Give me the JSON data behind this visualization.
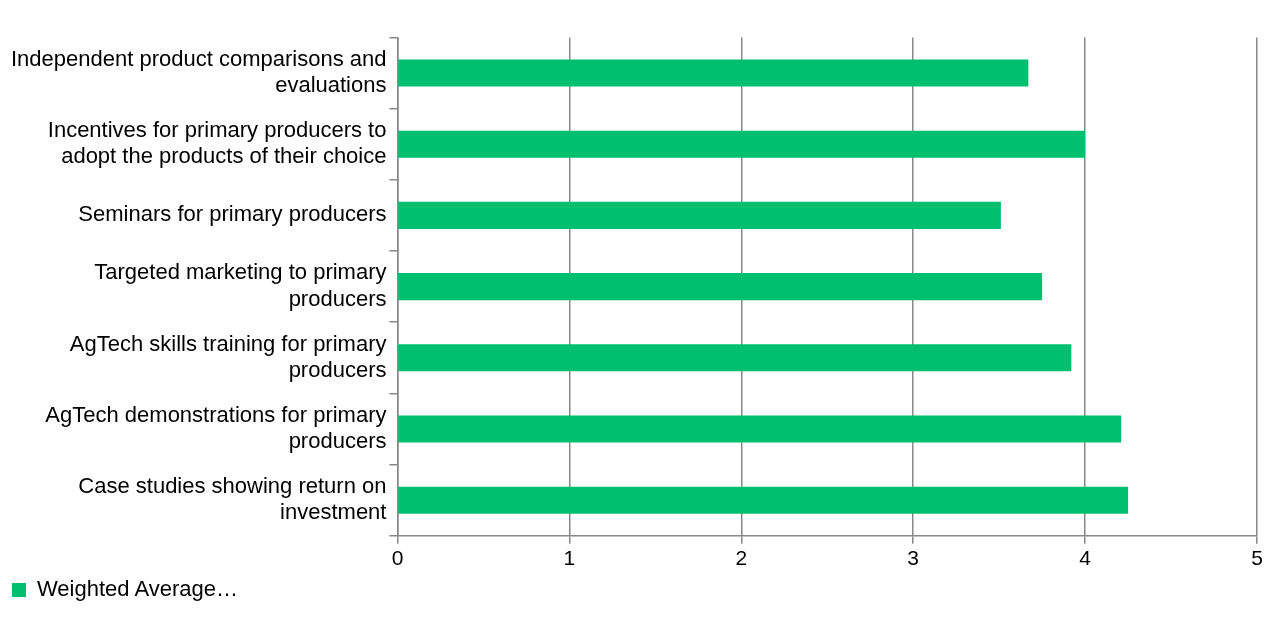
{
  "chart_data": {
    "type": "bar",
    "orientation": "horizontal",
    "categories": [
      "Independent product comparisons and evaluations",
      "Incentives for primary producers to adopt the products of their choice",
      "Seminars for primary producers",
      "Targeted marketing to primary producers",
      "AgTech skills training for primary producers",
      "AgTech demonstrations for primary producers",
      "Case studies showing return on investment"
    ],
    "series": [
      {
        "name": "Weighted Average…",
        "color": "#00bf6f",
        "values": [
          3.67,
          4.0,
          3.51,
          3.75,
          3.92,
          4.21,
          4.25
        ]
      }
    ],
    "xlim": [
      0,
      5
    ],
    "xticks": [
      0,
      1,
      2,
      3,
      4,
      5
    ],
    "grid": "x",
    "legend": "bottom left"
  }
}
